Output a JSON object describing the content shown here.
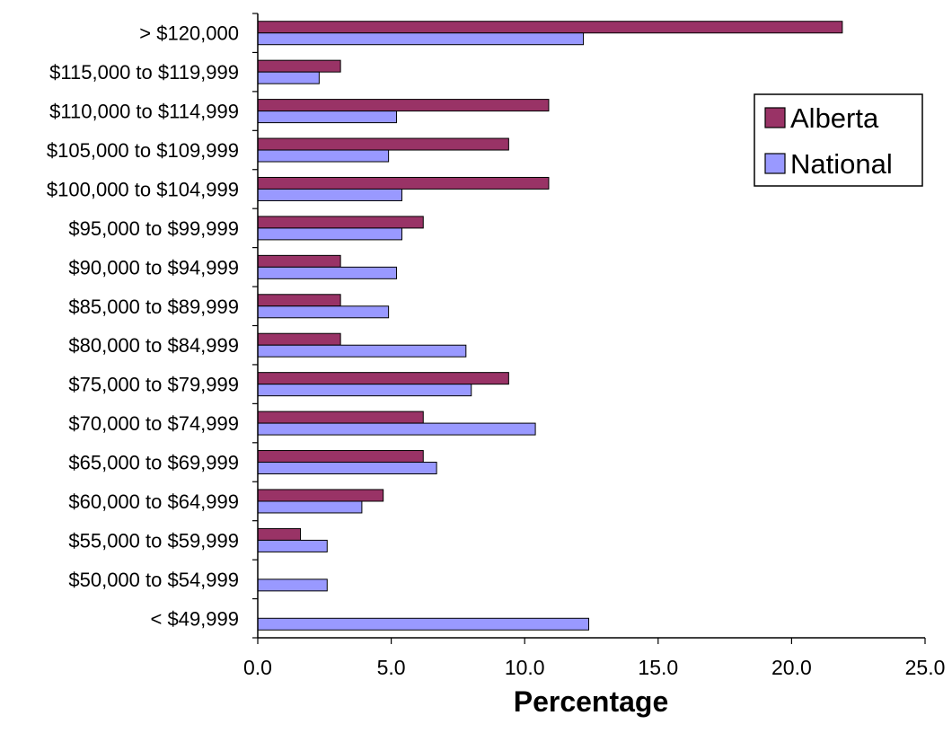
{
  "chart_data": {
    "type": "bar",
    "orientation": "horizontal",
    "categories": [
      "> $120,000",
      "$115,000 to $119,999",
      "$110,000 to $114,999",
      "$105,000 to $109,999",
      "$100,000 to $104,999",
      "$95,000 to $99,999",
      "$90,000 to $94,999",
      "$85,000 to $89,999",
      "$80,000 to $84,999",
      "$75,000 to $79,999",
      "$70,000 to $74,999",
      "$65,000 to $69,999",
      "$60,000 to $64,999",
      "$55,000 to $59,999",
      "$50,000 to $54,999",
      "< $49,999"
    ],
    "series": [
      {
        "name": "Alberta",
        "color": "#993366",
        "values": [
          21.9,
          3.1,
          10.9,
          9.4,
          10.9,
          6.2,
          3.1,
          3.1,
          3.1,
          9.4,
          6.2,
          6.2,
          4.7,
          1.6,
          0.0,
          0.0
        ]
      },
      {
        "name": "National",
        "color": "#9999ff",
        "values": [
          12.2,
          2.3,
          5.2,
          4.9,
          5.4,
          5.4,
          5.2,
          4.9,
          7.8,
          8.0,
          10.4,
          6.7,
          3.9,
          2.6,
          2.6,
          12.4
        ]
      }
    ],
    "xlabel": "Percentage",
    "ylabel": "",
    "title": "",
    "xlim": [
      0,
      25
    ],
    "xticks": [
      "0.0",
      "5.0",
      "10.0",
      "15.0",
      "20.0",
      "25.0"
    ],
    "grid": false,
    "legend_position": "right"
  }
}
